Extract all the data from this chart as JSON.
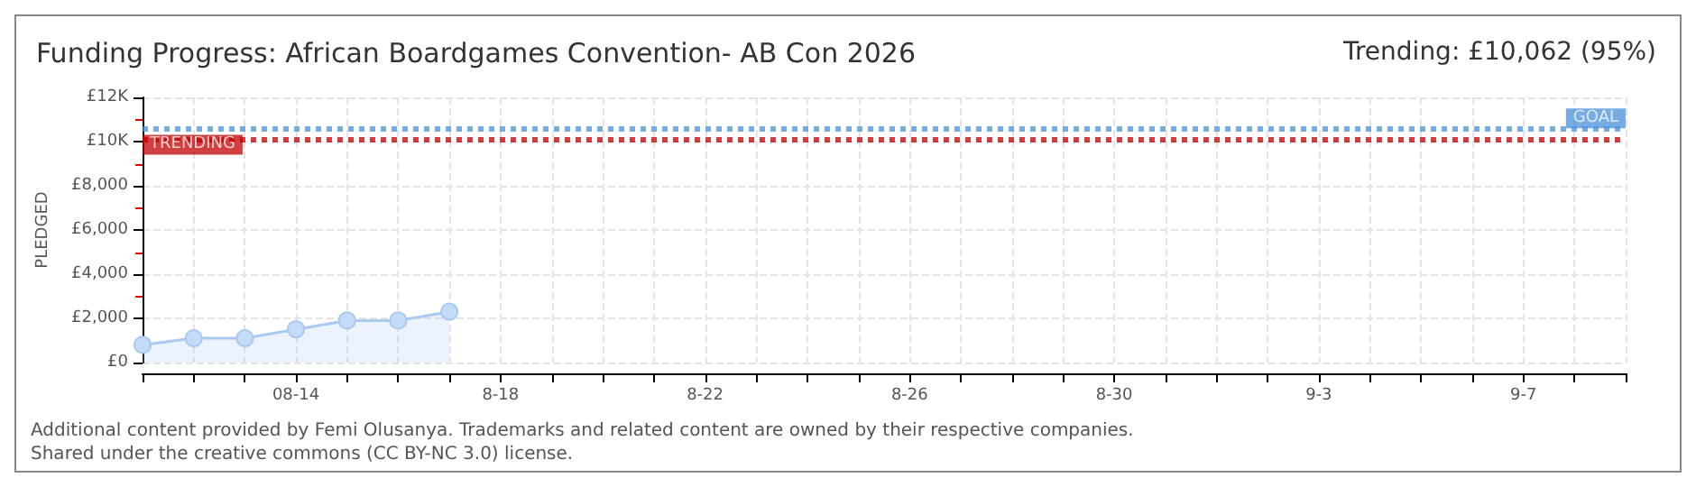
{
  "chart_data": {
    "type": "area",
    "title": "Funding Progress: African Boardgames Convention- AB Con 2026",
    "subtitle": "Trending: £10,062 (95%)",
    "ylabel": "PLEDGED",
    "x": [
      "--08-11",
      "--08-12",
      "--08-13",
      "--08-14",
      "--08-15",
      "--08-16",
      "--08-17"
    ],
    "series": [
      {
        "color": "#a9c9f0",
        "values": [
          800,
          1100,
          1100,
          1500,
          1900,
          1900,
          2300
        ]
      }
    ],
    "xlim": [
      "--08-11",
      "--09-09"
    ],
    "xticks": [
      {
        "value": "--08-11",
        "label": null
      },
      {
        "value": "--08-12",
        "label": null
      },
      {
        "value": "--08-13",
        "label": null
      },
      {
        "value": "--08-14",
        "label": "08-14"
      },
      {
        "value": "--08-15",
        "label": null
      },
      {
        "value": "--08-16",
        "label": null
      },
      {
        "value": "--08-17",
        "label": null
      },
      {
        "value": "--08-18",
        "label": "8-18"
      },
      {
        "value": "--08-19",
        "label": null
      },
      {
        "value": "--08-20",
        "label": null
      },
      {
        "value": "--08-21",
        "label": null
      },
      {
        "value": "--08-22",
        "label": "8-22"
      },
      {
        "value": "--08-23",
        "label": null
      },
      {
        "value": "--08-24",
        "label": null
      },
      {
        "value": "--08-25",
        "label": null
      },
      {
        "value": "--08-26",
        "label": "8-26"
      },
      {
        "value": "--08-27",
        "label": null
      },
      {
        "value": "--08-28",
        "label": null
      },
      {
        "value": "--08-29",
        "label": null
      },
      {
        "value": "--08-30",
        "label": "8-30"
      },
      {
        "value": "--08-31",
        "label": null
      },
      {
        "value": "--09-01",
        "label": null
      },
      {
        "value": "--09-02",
        "label": null
      },
      {
        "value": "--09-03",
        "label": "9-3"
      },
      {
        "value": "--09-04",
        "label": null
      },
      {
        "value": "--09-05",
        "label": null
      },
      {
        "value": "--09-06",
        "label": null
      },
      {
        "value": "--09-07",
        "label": "9-7"
      },
      {
        "value": "--09-08",
        "label": null
      },
      {
        "value": "--09-09",
        "label": null
      }
    ],
    "ylim": [
      0,
      12000
    ],
    "yticks": [
      {
        "value": 0,
        "label": "£0"
      },
      {
        "value": 1000,
        "label": null
      },
      {
        "value": 2000,
        "label": "£2,000"
      },
      {
        "value": 3000,
        "label": null
      },
      {
        "value": 4000,
        "label": "£4,000"
      },
      {
        "value": 5000,
        "label": null
      },
      {
        "value": 6000,
        "label": "£6,000"
      },
      {
        "value": 7000,
        "label": null
      },
      {
        "value": 8000,
        "label": "£8,000"
      },
      {
        "value": 9000,
        "label": null
      },
      {
        "value": 10000,
        "label": "£10K"
      },
      {
        "value": 11000,
        "label": null
      },
      {
        "value": 12000,
        "label": "£12K"
      }
    ],
    "ref_lines": [
      {
        "axis": "y",
        "value": 10600,
        "label": "GOAL",
        "color": "#4a90d9",
        "line_style": "dotted"
      },
      {
        "axis": "y",
        "value": 10062,
        "label": "TRENDING",
        "color": "#c00000",
        "line_style": "dotted"
      }
    ],
    "grid": true,
    "marker": "circle",
    "line_style": "solid",
    "annotations": [
      "Additional content provided by Femi Olusanya. Trademarks and related content are owned by their respective companies.",
      "Shared under the creative commons (CC BY-NC 3.0) license."
    ]
  }
}
